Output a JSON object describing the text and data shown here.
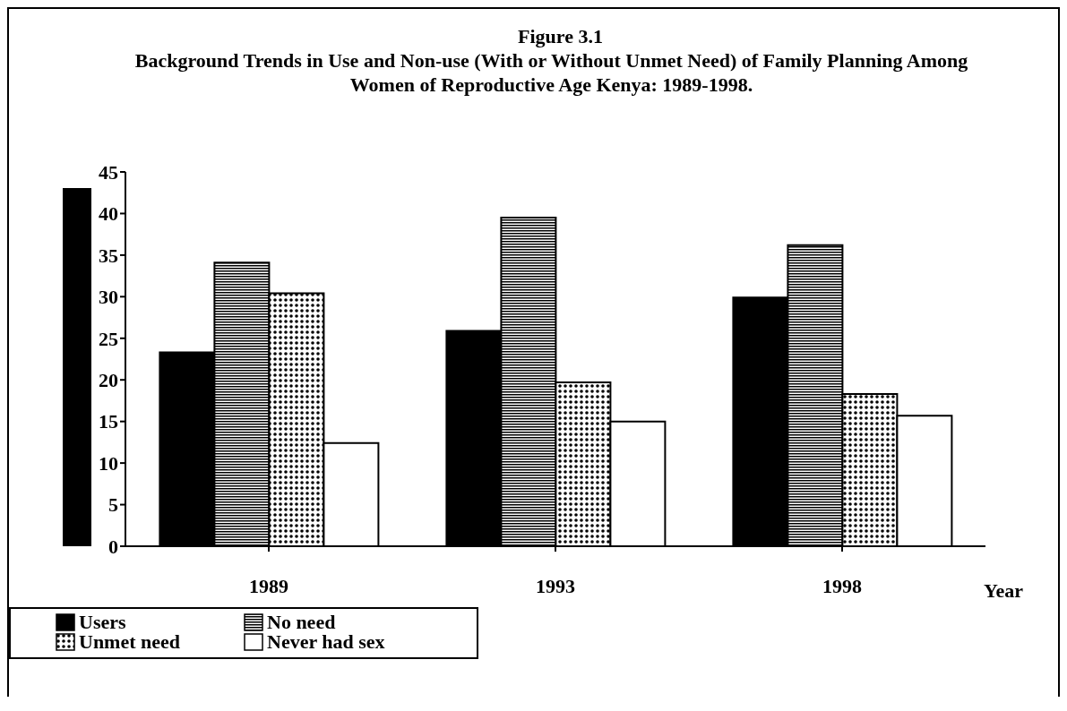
{
  "chart_data": {
    "type": "bar",
    "title": "Figure 3.1",
    "subtitle": "Background Trends in Use and Non-use (With or Without Unmet Need) of Family Planning Among Women of Reproductive Age Kenya: 1989-1998.",
    "xlabel": "Year",
    "categories": [
      "1989",
      "1993",
      "1998"
    ],
    "series": [
      {
        "name": "Users",
        "color": "#000000",
        "values": [
          23.3,
          25.9,
          29.9
        ]
      },
      {
        "name": "No need",
        "color": "#000000",
        "values": [
          34.1,
          39.5,
          36.2
        ]
      },
      {
        "name": "Unmet need",
        "color": "#000000",
        "values": [
          30.4,
          19.7,
          18.3
        ]
      },
      {
        "name": "Never had sex",
        "color": "#ffffff",
        "values": [
          12.4,
          15.0,
          15.7
        ]
      }
    ],
    "ylim": [
      0,
      45
    ],
    "yticks": [
      0,
      5,
      10,
      15,
      20,
      25,
      30,
      35,
      40,
      45
    ],
    "legend": "bottom left"
  }
}
